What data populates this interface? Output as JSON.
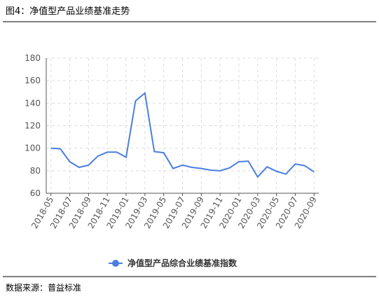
{
  "chart_data": {
    "type": "line",
    "title": "图4：净值型产品业绩基准走势",
    "source": "数据来源：普益标准",
    "categories": [
      "2018-05",
      null,
      "2018-07",
      null,
      "2018-09",
      null,
      "2018-11",
      null,
      "2019-01",
      null,
      "2019-03",
      null,
      "2019-05",
      null,
      "2019-07",
      null,
      "2019-09",
      null,
      "2019-11",
      null,
      "2020-01",
      null,
      "2020-03",
      null,
      "2020-05",
      null,
      "2020-07",
      null,
      "2020-09"
    ],
    "series": [
      {
        "name": "净值型产品综合业绩基准指数",
        "color": "#4a7fe0",
        "values": [
          100,
          99.5,
          88,
          83,
          85,
          93,
          96.5,
          96.5,
          92,
          142,
          149,
          97,
          96,
          82,
          85,
          83,
          82,
          80.5,
          80,
          82.5,
          88,
          88.5,
          74.5,
          83.5,
          79.5,
          77,
          86,
          84.5,
          79
        ]
      }
    ],
    "ylim": [
      60,
      180
    ],
    "yticks": [
      60,
      80,
      100,
      120,
      140,
      160,
      180
    ],
    "grid": true,
    "legend": "bottom"
  }
}
